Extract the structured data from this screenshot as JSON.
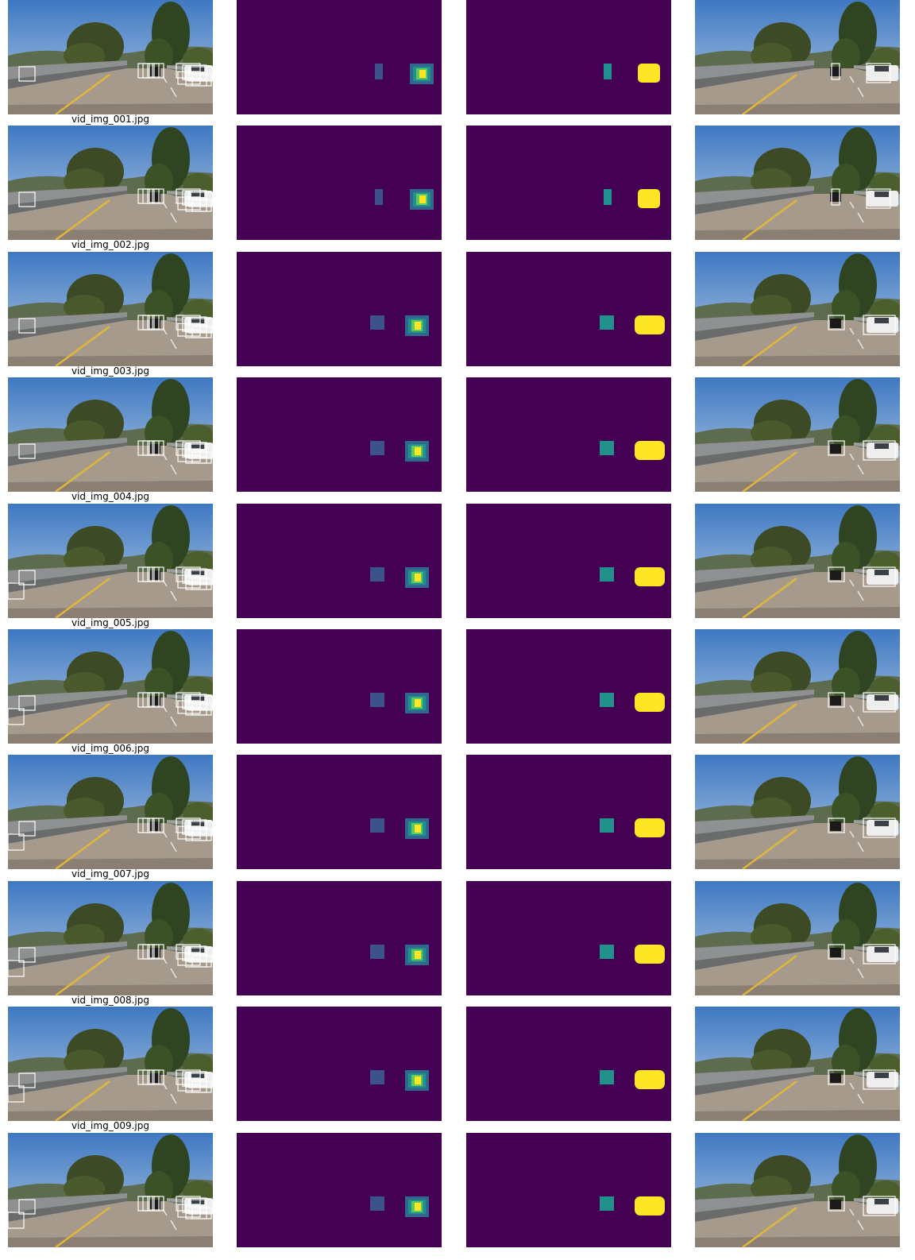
{
  "frames": [
    {
      "filename": "vid_img_001.jpg"
    },
    {
      "filename": "vid_img_002.jpg"
    },
    {
      "filename": "vid_img_003.jpg"
    },
    {
      "filename": "vid_img_004.jpg"
    },
    {
      "filename": "vid_img_005.jpg"
    },
    {
      "filename": "vid_img_006.jpg"
    },
    {
      "filename": "vid_img_007.jpg"
    },
    {
      "filename": "vid_img_008.jpg"
    },
    {
      "filename": "vid_img_009.jpg"
    },
    {
      "filename": ""
    }
  ],
  "colors": {
    "sky": "#5f8fc4",
    "heatmap_background": "#440154",
    "viridis_mid": "#21918c",
    "viridis_high": "#fde725",
    "box": "#ffffff"
  }
}
